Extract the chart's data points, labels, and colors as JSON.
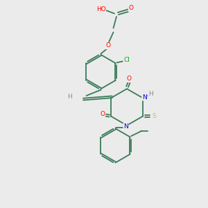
{
  "background_color": "#ebebeb",
  "bond_color": "#3a7a5a",
  "atom_colors": {
    "O": "#ff0000",
    "N": "#0000cc",
    "S": "#cccc00",
    "Cl": "#00aa00",
    "H": "#888888",
    "C": "#000000"
  },
  "figsize": [
    3.0,
    3.0
  ],
  "dpi": 100,
  "lw": 1.3
}
